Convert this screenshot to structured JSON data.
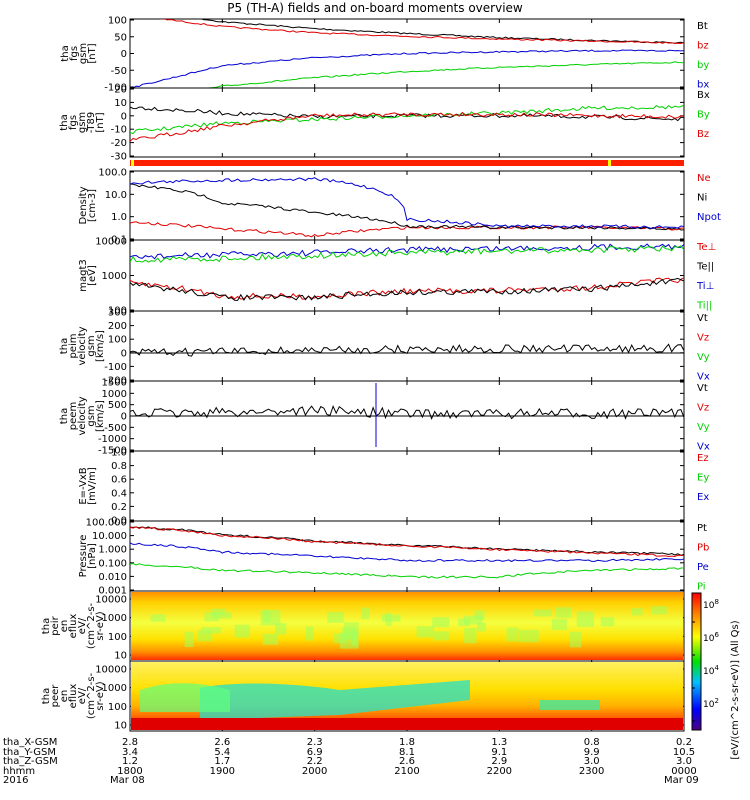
{
  "title": "P5 (TH-A) fields and on-board moments overview",
  "x_ticks": [
    "1800",
    "1900",
    "2000",
    "2100",
    "2200",
    "2300",
    "0000"
  ],
  "colors": {
    "black": "#000000",
    "red": "#e00000",
    "green": "#00d000",
    "blue": "#0000d0",
    "status_bar": "#ff2000",
    "status_yellow": "#ffff00"
  },
  "panels": [
    {
      "id": "fgs-gsm",
      "ylabel": [
        "tha",
        "fgs",
        "gsm",
        "[nT]"
      ],
      "ticks": [
        "100",
        "50",
        "0",
        "-50",
        "-100"
      ],
      "legend": [
        {
          "text": "Bt",
          "color": "black"
        },
        {
          "text": "bz",
          "color": "red"
        },
        {
          "text": "by",
          "color": "green"
        },
        {
          "text": "bx",
          "color": "blue"
        }
      ]
    },
    {
      "id": "fgs-dsl",
      "ylabel": [
        "tha",
        "fgs",
        "gsm",
        "-T89",
        "[nT]"
      ],
      "ticks": [
        "20",
        "10",
        "0",
        "-10",
        "-20",
        "-30"
      ],
      "legend": [
        {
          "text": "Bx",
          "color": "black"
        },
        {
          "text": "By",
          "color": "green"
        },
        {
          "text": "Bz",
          "color": "red"
        }
      ]
    },
    {
      "id": "status-bar",
      "ylabel": [],
      "ticks": [],
      "legend": []
    },
    {
      "id": "density",
      "ylabel": [
        "Density",
        "[cm-3]"
      ],
      "ticks": [
        "100.0",
        "10.0",
        "1.0",
        "0.1"
      ],
      "legend": [
        {
          "text": "Ne",
          "color": "red"
        },
        {
          "text": "Ni",
          "color": "black"
        },
        {
          "text": "Npot",
          "color": "blue"
        }
      ]
    },
    {
      "id": "temperature",
      "ylabel": [
        "magt3",
        "[eV]"
      ],
      "ticks": [
        "10000",
        "1000",
        "100"
      ],
      "legend": [
        {
          "text": "Te⊥",
          "color": "red"
        },
        {
          "text": "Te||",
          "color": "black"
        },
        {
          "text": "Ti⊥",
          "color": "blue"
        },
        {
          "text": "Ti||",
          "color": "green"
        }
      ]
    },
    {
      "id": "ion-velocity",
      "ylabel": [
        "tha",
        "peim",
        "velocity",
        "gsm",
        "[km/s]"
      ],
      "ticks": [
        "300",
        "200",
        "100",
        "0",
        "-100",
        "-200"
      ],
      "legend": [
        {
          "text": "Vt",
          "color": "black"
        },
        {
          "text": "Vz",
          "color": "red"
        },
        {
          "text": "Vy",
          "color": "green"
        },
        {
          "text": "Vx",
          "color": "blue"
        }
      ]
    },
    {
      "id": "electron-velocity",
      "ylabel": [
        "tha",
        "peem",
        "velocity",
        "gsm",
        "[km/s]"
      ],
      "ticks": [
        "1500",
        "1000",
        "500",
        "0",
        "-500",
        "-1000",
        "-1500"
      ],
      "legend": [
        {
          "text": "Vt",
          "color": "black"
        },
        {
          "text": "Vz",
          "color": "red"
        },
        {
          "text": "Vy",
          "color": "green"
        },
        {
          "text": "Vx",
          "color": "blue"
        }
      ]
    },
    {
      "id": "e-field",
      "ylabel": [
        "E=-VxB",
        "[mV/m]"
      ],
      "ticks": [
        "1.0",
        "0.8",
        "0.6",
        "0.4",
        "0.2",
        "0.0"
      ],
      "legend": [
        {
          "text": "Ez",
          "color": "red"
        },
        {
          "text": "Ey",
          "color": "green"
        },
        {
          "text": "Ex",
          "color": "blue"
        }
      ]
    },
    {
      "id": "pressure",
      "ylabel": [
        "Pressure",
        "[nPa]"
      ],
      "ticks": [
        "100.000",
        "10.000",
        "1.000",
        "0.100",
        "0.010",
        "0.001"
      ],
      "legend": [
        {
          "text": "Pt",
          "color": "black"
        },
        {
          "text": "Pb",
          "color": "red"
        },
        {
          "text": "Pe",
          "color": "blue"
        },
        {
          "text": "Pi",
          "color": "green"
        }
      ]
    },
    {
      "id": "ion-spectrogram",
      "ylabel": [
        "tha",
        "peir",
        "en",
        "eflux",
        "eV/",
        "(cm^2-s-",
        "sr-eV)"
      ],
      "ticks": [
        "10000",
        "1000",
        "100",
        "10"
      ],
      "legend": []
    },
    {
      "id": "electron-spectrogram",
      "ylabel": [
        "tha",
        "peer",
        "en",
        "eflux",
        "eV/",
        "(cm^2-s-",
        "sr-eV)"
      ],
      "ticks": [
        "10000",
        "1000",
        "100",
        "10"
      ],
      "legend": []
    }
  ],
  "colorbar": {
    "label": "[eV/(cm^2-s-sr-eV)] (All Qs)",
    "ticks": [
      "10^8",
      "10^6",
      "10^4",
      "10^2"
    ]
  },
  "footer": {
    "rows": [
      {
        "label": "tha_X-GSM",
        "values": [
          "2.8",
          "2.6",
          "2.3",
          "1.8",
          "1.3",
          "0.8",
          "0.2"
        ]
      },
      {
        "label": "tha_Y-GSM",
        "values": [
          "3.4",
          "5.4",
          "6.9",
          "8.1",
          "9.1",
          "9.9",
          "10.5"
        ]
      },
      {
        "label": "tha_Z-GSM",
        "values": [
          "1.2",
          "1.7",
          "2.2",
          "2.6",
          "2.9",
          "3.0",
          "3.0"
        ]
      },
      {
        "label": "hhmm",
        "values": [
          "1800",
          "1900",
          "2000",
          "2100",
          "2200",
          "2300",
          "0000"
        ]
      }
    ],
    "year": "2016",
    "date_left": "Mar 08",
    "date_right": "Mar 09"
  },
  "chart_data": {
    "type": "line",
    "title": "P5 (TH-A) fields and on-board moments overview",
    "x": [
      "1800",
      "1900",
      "2000",
      "2100",
      "2200",
      "2300",
      "0000"
    ],
    "xlim": [
      "1800",
      "0000"
    ],
    "subplots": [
      {
        "name": "fgs-gsm",
        "ylim": [
          -100,
          100
        ],
        "series": [
          {
            "name": "Bt",
            "color": "black",
            "values": [
              130,
              92,
              72,
              58,
              46,
              38,
              31
            ]
          },
          {
            "name": "bz",
            "color": "red",
            "values": [
              112,
              78,
              60,
              50,
              42,
              36,
              30
            ]
          },
          {
            "name": "by",
            "color": "green",
            "values": [
              -140,
              -95,
              -70,
              -52,
              -40,
              -32,
              -25
            ]
          },
          {
            "name": "bx",
            "color": "blue",
            "values": [
              -100,
              -35,
              -12,
              0,
              5,
              8,
              8
            ]
          }
        ]
      },
      {
        "name": "fgs-dsl",
        "ylim": [
          -35,
          20
        ],
        "series": [
          {
            "name": "Bx",
            "color": "black",
            "values": [
              5,
              0,
              -3,
              -2,
              -2,
              -3,
              -5
            ]
          },
          {
            "name": "By",
            "color": "green",
            "values": [
              -15,
              -8,
              -5,
              -2,
              0,
              4,
              5
            ]
          },
          {
            "name": "Bz",
            "color": "red",
            "values": [
              -22,
              -10,
              -2,
              -1,
              -1,
              -2,
              -3
            ]
          }
        ]
      },
      {
        "name": "density",
        "scale": "log",
        "ylim": [
          0.1,
          100
        ],
        "series": [
          {
            "name": "Ne",
            "color": "red",
            "values": [
              0.6,
              0.3,
              0.15,
              0.35,
              0.35,
              0.35,
              0.3
            ]
          },
          {
            "name": "Ni",
            "color": "black",
            "values": [
              25,
              4,
              1.5,
              0.4,
              0.35,
              0.35,
              0.3
            ]
          },
          {
            "name": "Npot",
            "color": "blue",
            "values": [
              30,
              40,
              45,
              0.8,
              0.4,
              0.4,
              0.35
            ]
          }
        ]
      },
      {
        "name": "temperature",
        "scale": "log",
        "ylim": [
          30,
          10000
        ],
        "series": [
          {
            "name": "Te⊥",
            "color": "red",
            "values": [
              300,
              100,
              100,
              150,
              160,
              200,
              400
            ]
          },
          {
            "name": "Te||",
            "color": "black",
            "values": [
              250,
              90,
              90,
              140,
              150,
              180,
              350
            ]
          },
          {
            "name": "Ti⊥",
            "color": "blue",
            "values": [
              2500,
              3000,
              3500,
              4500,
              5000,
              5500,
              6000
            ]
          },
          {
            "name": "Ti||",
            "color": "green",
            "values": [
              2000,
              2200,
              2800,
              3500,
              4000,
              4500,
              5000
            ]
          }
        ]
      },
      {
        "name": "ion-velocity",
        "ylim": [
          -200,
          300
        ],
        "series": [
          {
            "name": "Vt",
            "color": "black",
            "values": [
              0,
              10,
              20,
              25,
              30,
              30,
              35
            ]
          }
        ]
      },
      {
        "name": "electron-velocity",
        "ylim": [
          -1500,
          1500
        ],
        "series": [
          {
            "name": "Vt",
            "color": "black",
            "values": [
              100,
              150,
              250,
              100,
              100,
              100,
              100
            ]
          }
        ]
      },
      {
        "name": "pressure",
        "scale": "log",
        "ylim": [
          0.001,
          100
        ],
        "series": [
          {
            "name": "Pt",
            "color": "black",
            "values": [
              40,
              10,
              3.5,
              1.8,
              1.0,
              0.6,
              0.4
            ]
          },
          {
            "name": "Pb",
            "color": "red",
            "values": [
              35,
              9,
              3.2,
              1.6,
              0.9,
              0.5,
              0.3
            ]
          },
          {
            "name": "Pe",
            "color": "blue",
            "values": [
              2.5,
              0.6,
              0.3,
              0.15,
              0.15,
              0.15,
              0.2
            ]
          },
          {
            "name": "Pi",
            "color": "green",
            "values": [
              0.08,
              0.03,
              0.02,
              0.01,
              0.01,
              0.03,
              0.04
            ]
          }
        ]
      }
    ]
  }
}
